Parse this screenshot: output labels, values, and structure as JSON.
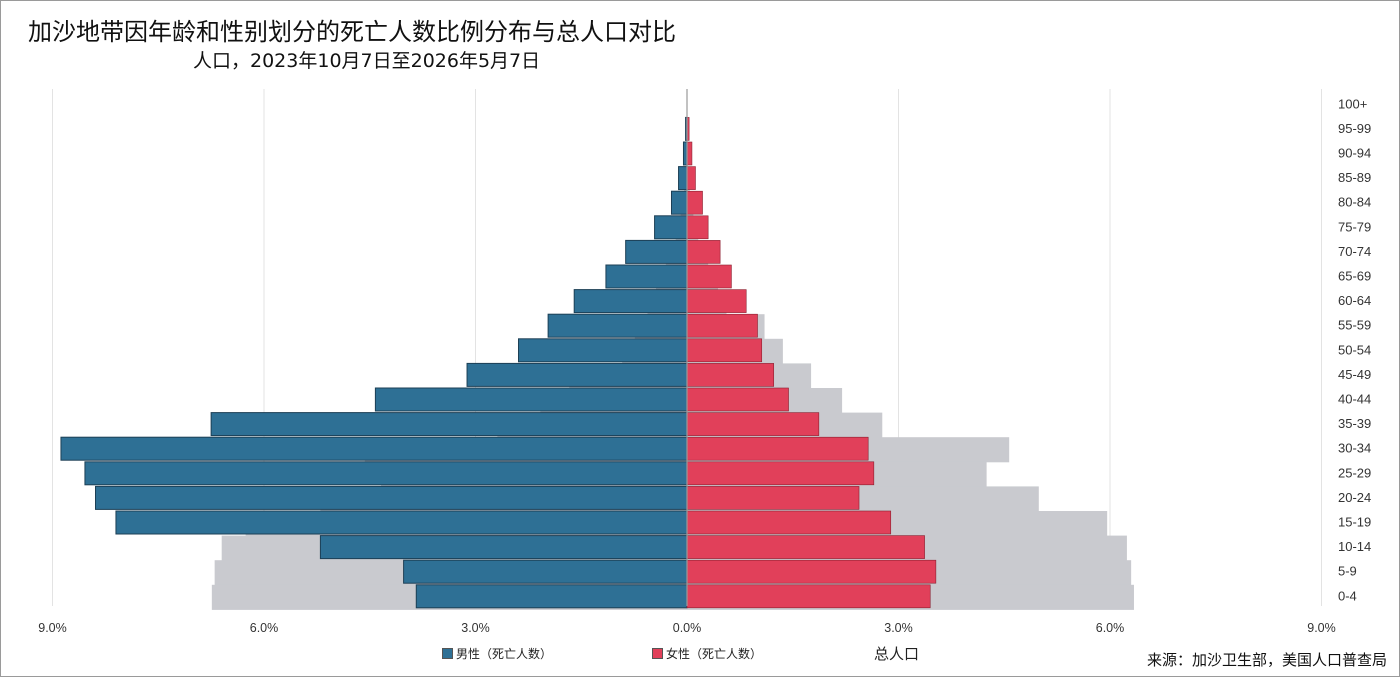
{
  "title": "加沙地带因年龄和性别划分的死亡人数比例分布与总人口对比",
  "subtitle": "人口，2023年10月7日至2026年5月7日",
  "source": "来源：加沙卫生部，美国人口普查局",
  "legend": {
    "male": "男性（死亡人数）",
    "female": "女性（死亡人数）",
    "total": "总人口"
  },
  "colors": {
    "male": "#2e7095",
    "female": "#e1405a",
    "population": "#c9cacf"
  },
  "chart_data": {
    "type": "bar",
    "orientation": "horizontal-population-pyramid",
    "categories": [
      "100+",
      "95-99",
      "90-94",
      "85-89",
      "80-84",
      "75-79",
      "70-74",
      "65-69",
      "60-64",
      "55-59",
      "50-54",
      "45-49",
      "40-44",
      "35-39",
      "30-34",
      "25-29",
      "20-24",
      "15-19",
      "10-14",
      "5-9",
      "0-4"
    ],
    "x_ticks": [
      "9.0%",
      "6.0%",
      "3.0%",
      "0.0%",
      "3.0%",
      "6.0%",
      "9.0%"
    ],
    "xlim": [
      -9,
      9
    ],
    "unit": "%",
    "series": [
      {
        "name": "男性（死亡人数）",
        "side": "left",
        "values": [
          0.0,
          0.02,
          0.05,
          0.12,
          0.22,
          0.46,
          0.87,
          1.15,
          1.6,
          1.97,
          2.39,
          3.12,
          4.42,
          6.75,
          8.88,
          8.54,
          8.39,
          8.1,
          5.2,
          4.02,
          3.84
        ]
      },
      {
        "name": "女性（死亡人数）",
        "side": "right",
        "values": [
          0.0,
          0.03,
          0.07,
          0.12,
          0.22,
          0.3,
          0.47,
          0.63,
          0.84,
          1.0,
          1.06,
          1.23,
          1.44,
          1.87,
          2.57,
          2.65,
          2.44,
          2.89,
          3.37,
          3.53,
          3.45
        ]
      },
      {
        "name": "总人口",
        "side": "both",
        "values_left": [
          0.0,
          0.0,
          0.01,
          0.04,
          0.09,
          0.16,
          0.3,
          0.44,
          0.56,
          0.74,
          0.92,
          1.67,
          2.08,
          2.69,
          4.57,
          4.34,
          5.2,
          6.26,
          6.6,
          6.7,
          6.74
        ],
        "values_right": [
          0.0,
          0.0,
          0.01,
          0.04,
          0.09,
          0.16,
          0.3,
          0.44,
          0.56,
          1.1,
          1.36,
          1.76,
          2.2,
          2.77,
          4.57,
          4.25,
          4.99,
          5.96,
          6.24,
          6.3,
          6.34
        ]
      }
    ],
    "grid": "vertical",
    "legend_position": "bottom"
  }
}
